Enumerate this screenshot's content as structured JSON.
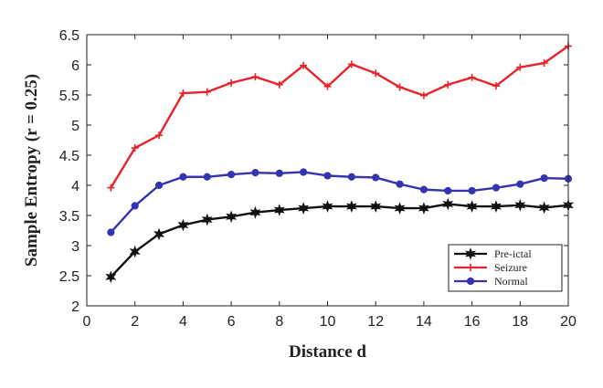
{
  "chart_data": {
    "type": "line",
    "xlabel": "Distance d",
    "ylabel": "Sample Entropy (r = 0.25)",
    "xlim": [
      0,
      20
    ],
    "ylim": [
      2,
      6.5
    ],
    "xticks": [
      0,
      2,
      4,
      6,
      8,
      10,
      12,
      14,
      16,
      18,
      20
    ],
    "yticks": [
      2,
      2.5,
      3,
      3.5,
      4,
      4.5,
      5,
      5.5,
      6,
      6.5
    ],
    "grid": false,
    "legend_position": "bottom-right",
    "x": [
      1,
      2,
      3,
      4,
      5,
      6,
      7,
      8,
      9,
      10,
      11,
      12,
      13,
      14,
      15,
      16,
      17,
      18,
      19,
      20
    ],
    "series": [
      {
        "name": "Pre-ictal",
        "color": "#111111",
        "marker": "star",
        "values": [
          2.48,
          2.9,
          3.19,
          3.34,
          3.43,
          3.48,
          3.55,
          3.59,
          3.62,
          3.65,
          3.65,
          3.65,
          3.62,
          3.62,
          3.69,
          3.65,
          3.65,
          3.67,
          3.63,
          3.67
        ]
      },
      {
        "name": "Seizure",
        "color": "#e8232a",
        "marker": "plus",
        "values": [
          3.96,
          4.62,
          4.83,
          5.53,
          5.55,
          5.7,
          5.8,
          5.67,
          5.99,
          5.64,
          6.01,
          5.86,
          5.63,
          5.49,
          5.67,
          5.79,
          5.65,
          5.96,
          6.03,
          6.31
        ]
      },
      {
        "name": "Normal",
        "color": "#3434b0",
        "marker": "circle",
        "values": [
          3.22,
          3.66,
          4.0,
          4.14,
          4.14,
          4.18,
          4.21,
          4.2,
          4.22,
          4.16,
          4.14,
          4.13,
          4.02,
          3.93,
          3.91,
          3.91,
          3.96,
          4.02,
          4.12,
          4.11
        ]
      }
    ]
  }
}
